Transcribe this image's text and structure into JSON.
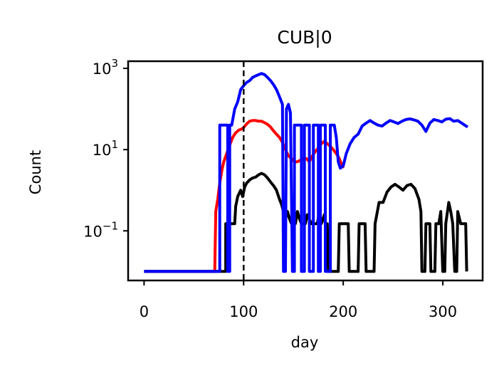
{
  "chart_data": {
    "type": "line",
    "title": "CUB|0",
    "xlabel": "day",
    "ylabel": "Count",
    "xlim": [
      -16,
      340
    ],
    "ylim": [
      0.006,
      1500
    ],
    "yscale": "log",
    "xticks": [
      0,
      100,
      200,
      300
    ],
    "xtick_labels": [
      "0",
      "100",
      "200",
      "300"
    ],
    "yticks": [
      0.1,
      10,
      1000
    ],
    "ytick_labels": [
      {
        "base": "10",
        "exp": "−1"
      },
      {
        "base": "10",
        "exp": "1"
      },
      {
        "base": "10",
        "exp": "3"
      }
    ],
    "vline": {
      "x": 100,
      "style": "dashed",
      "color": "#000000"
    },
    "grid": false,
    "legend": "none",
    "series": [
      {
        "color": "#ff0000",
        "points": [
          [
            0,
            0.01
          ],
          [
            71,
            0.01
          ],
          [
            72,
            0.3
          ],
          [
            74,
            0.6
          ],
          [
            76,
            1.5
          ],
          [
            78,
            3
          ],
          [
            80,
            5
          ],
          [
            83,
            8
          ],
          [
            86,
            13
          ],
          [
            89,
            20
          ],
          [
            92,
            26
          ],
          [
            95,
            30
          ],
          [
            98,
            32
          ],
          [
            100,
            35
          ],
          [
            103,
            43
          ],
          [
            106,
            50
          ],
          [
            109,
            52
          ],
          [
            112,
            52
          ],
          [
            115,
            50
          ],
          [
            118,
            50
          ],
          [
            121,
            46
          ],
          [
            124,
            42
          ],
          [
            127,
            36
          ],
          [
            130,
            29
          ],
          [
            133,
            24
          ],
          [
            136,
            20
          ],
          [
            139,
            15
          ],
          [
            142,
            10
          ],
          [
            145,
            7
          ],
          [
            148,
            6
          ],
          [
            151,
            5
          ],
          [
            154,
            5
          ],
          [
            157,
            5.5
          ],
          [
            160,
            6
          ],
          [
            163,
            6
          ],
          [
            166,
            5
          ],
          [
            169,
            7
          ],
          [
            172,
            9
          ],
          [
            175,
            11
          ],
          [
            178,
            14
          ],
          [
            181,
            16
          ],
          [
            184,
            14
          ],
          [
            187,
            12
          ],
          [
            190,
            10
          ],
          [
            193,
            8
          ],
          [
            196,
            6
          ],
          [
            199,
            4
          ],
          [
            200,
            3.5
          ]
        ]
      },
      {
        "color": "#000000",
        "points": [
          [
            0,
            0.01
          ],
          [
            82,
            0.01
          ],
          [
            82,
            0.15
          ],
          [
            91,
            0.15
          ],
          [
            92,
            0.4
          ],
          [
            94,
            0.7
          ],
          [
            97,
            1.0
          ],
          [
            99,
            0.7
          ],
          [
            101,
            1.2
          ],
          [
            103,
            1.5
          ],
          [
            106,
            1.8
          ],
          [
            109,
            2.0
          ],
          [
            112,
            2.1
          ],
          [
            115,
            2.4
          ],
          [
            118,
            2.6
          ],
          [
            121,
            2.4
          ],
          [
            124,
            2.0
          ],
          [
            127,
            1.6
          ],
          [
            130,
            1.3
          ],
          [
            133,
            1.0
          ],
          [
            136,
            0.6
          ],
          [
            138,
            0.45
          ],
          [
            140,
            0.3
          ],
          [
            142,
            0.2
          ],
          [
            144,
            0.3
          ],
          [
            146,
            0.2
          ],
          [
            148,
            0.15
          ],
          [
            150,
            0.25
          ],
          [
            152,
            0.15
          ],
          [
            154,
            0.3
          ],
          [
            156,
            0.2
          ],
          [
            158,
            0.15
          ],
          [
            162,
            0.15
          ],
          [
            164,
            0.25
          ],
          [
            168,
            0.15
          ],
          [
            174,
            0.15
          ],
          [
            176,
            0.3
          ],
          [
            178,
            0.15
          ],
          [
            181,
            0.25
          ],
          [
            182,
            0.15
          ],
          [
            184,
            0.15
          ],
          [
            185,
            0.01
          ],
          [
            195,
            0.01
          ],
          [
            196,
            0.15
          ],
          [
            205,
            0.15
          ],
          [
            206,
            0.01
          ],
          [
            215,
            0.01
          ],
          [
            216,
            0.15
          ],
          [
            222,
            0.15
          ],
          [
            223,
            0.01
          ],
          [
            231,
            0.01
          ],
          [
            232,
            0.15
          ],
          [
            236,
            0.5
          ],
          [
            240,
            0.5
          ],
          [
            244,
            0.9
          ],
          [
            248,
            1.2
          ],
          [
            252,
            1.4
          ],
          [
            256,
            1.2
          ],
          [
            260,
            1.0
          ],
          [
            264,
            1.3
          ],
          [
            268,
            1.4
          ],
          [
            272,
            1.1
          ],
          [
            276,
            0.6
          ],
          [
            278,
            0.3
          ],
          [
            279,
            0.01
          ],
          [
            282,
            0.01
          ],
          [
            283,
            0.15
          ],
          [
            287,
            0.15
          ],
          [
            288,
            0.01
          ],
          [
            292,
            0.01
          ],
          [
            293,
            0.15
          ],
          [
            296,
            0.15
          ],
          [
            298,
            0.3
          ],
          [
            300,
            0.01
          ],
          [
            302,
            0.01
          ],
          [
            303,
            0.15
          ],
          [
            306,
            0.5
          ],
          [
            308,
            0.3
          ],
          [
            310,
            0.15
          ],
          [
            312,
            0.01
          ],
          [
            314,
            0.01
          ],
          [
            315,
            0.3
          ],
          [
            318,
            0.15
          ],
          [
            323,
            0.15
          ],
          [
            324,
            0.01
          ]
        ]
      },
      {
        "color": "#0000ff",
        "points": [
          [
            0,
            0.01
          ],
          [
            76,
            0.01
          ],
          [
            76,
            40
          ],
          [
            84,
            40
          ],
          [
            84,
            0.01
          ],
          [
            86,
            0.01
          ],
          [
            86,
            40
          ],
          [
            88,
            40
          ],
          [
            91,
            100
          ],
          [
            94,
            150
          ],
          [
            97,
            300
          ],
          [
            99,
            350
          ],
          [
            101,
            400
          ],
          [
            103,
            450
          ],
          [
            106,
            500
          ],
          [
            109,
            600
          ],
          [
            112,
            650
          ],
          [
            115,
            700
          ],
          [
            118,
            750
          ],
          [
            121,
            700
          ],
          [
            124,
            600
          ],
          [
            127,
            500
          ],
          [
            130,
            400
          ],
          [
            133,
            300
          ],
          [
            136,
            200
          ],
          [
            139,
            130
          ],
          [
            140,
            0.01
          ],
          [
            142,
            0.01
          ],
          [
            143,
            100
          ],
          [
            145,
            130
          ],
          [
            147,
            80
          ],
          [
            149,
            0.01
          ],
          [
            151,
            0.01
          ],
          [
            151,
            40
          ],
          [
            158,
            40
          ],
          [
            158,
            0.01
          ],
          [
            161,
            0.01
          ],
          [
            161,
            40
          ],
          [
            166,
            40
          ],
          [
            166,
            0.01
          ],
          [
            170,
            0.01
          ],
          [
            170,
            40
          ],
          [
            175,
            40
          ],
          [
            175,
            0.01
          ],
          [
            177,
            0.01
          ],
          [
            177,
            40
          ],
          [
            182,
            40
          ],
          [
            182,
            0.01
          ],
          [
            187,
            0.01
          ],
          [
            187,
            40
          ],
          [
            191,
            40
          ],
          [
            193,
            20
          ],
          [
            195,
            5
          ],
          [
            197,
            3.5
          ],
          [
            200,
            4
          ],
          [
            203,
            8
          ],
          [
            207,
            14
          ],
          [
            211,
            20
          ],
          [
            215,
            24
          ],
          [
            219,
            38
          ],
          [
            223,
            45
          ],
          [
            227,
            52
          ],
          [
            231,
            45
          ],
          [
            235,
            40
          ],
          [
            239,
            38
          ],
          [
            243,
            45
          ],
          [
            247,
            52
          ],
          [
            251,
            48
          ],
          [
            255,
            44
          ],
          [
            259,
            50
          ],
          [
            263,
            55
          ],
          [
            267,
            57
          ],
          [
            271,
            54
          ],
          [
            275,
            50
          ],
          [
            279,
            40
          ],
          [
            283,
            28
          ],
          [
            287,
            45
          ],
          [
            291,
            55
          ],
          [
            295,
            52
          ],
          [
            299,
            48
          ],
          [
            303,
            56
          ],
          [
            307,
            58
          ],
          [
            311,
            50
          ],
          [
            315,
            52
          ],
          [
            319,
            45
          ],
          [
            322,
            40
          ],
          [
            325,
            36
          ]
        ]
      }
    ]
  }
}
